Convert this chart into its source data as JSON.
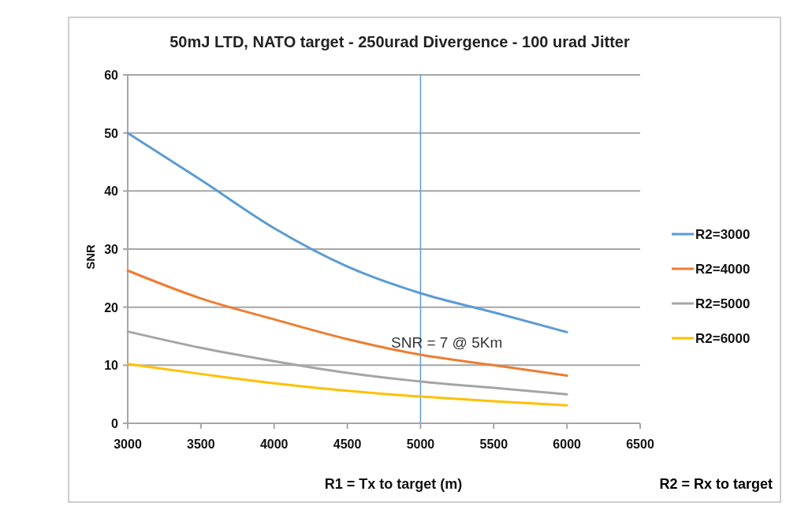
{
  "chart_data": {
    "type": "line",
    "title": "50mJ LTD, NATO target - 250urad Divergence - 100 urad Jitter",
    "xlabel": "R1 = Tx to target (m)",
    "ylabel": "SNR",
    "annotations": [
      "SNR = 7 @ 5Km",
      "R2 = Rx to target"
    ],
    "x": [
      3000,
      3500,
      4000,
      4500,
      5000,
      5500,
      6000
    ],
    "series": [
      {
        "name": "R2=3000",
        "color": "#5b9bd5",
        "values": [
          50,
          41.9,
          33.6,
          27.0,
          22.4,
          19.1,
          15.7
        ]
      },
      {
        "name": "R2=4000",
        "color": "#ed7d31",
        "values": [
          26.3,
          21.5,
          17.9,
          14.5,
          11.8,
          10.0,
          8.2
        ]
      },
      {
        "name": "R2=5000",
        "color": "#a5a5a5",
        "values": [
          15.8,
          13.0,
          10.7,
          8.7,
          7.2,
          6.1,
          5.0
        ]
      },
      {
        "name": "R2=6000",
        "color": "#ffc000",
        "values": [
          10.2,
          8.5,
          6.9,
          5.6,
          4.6,
          3.8,
          3.1
        ]
      }
    ],
    "xlim": [
      3000,
      6500
    ],
    "xticks": [
      3000,
      3500,
      4000,
      4500,
      5000,
      5500,
      6000,
      6500
    ],
    "ylim": [
      0,
      60
    ],
    "yticks": [
      0,
      10,
      20,
      30,
      40,
      50,
      60
    ],
    "grid": "y",
    "legend": "right",
    "marker": "none",
    "line_style": "solid",
    "ref_lines": [
      {
        "axis": "x",
        "value": 5000,
        "label": null,
        "color": "#5b9bd5"
      }
    ]
  }
}
